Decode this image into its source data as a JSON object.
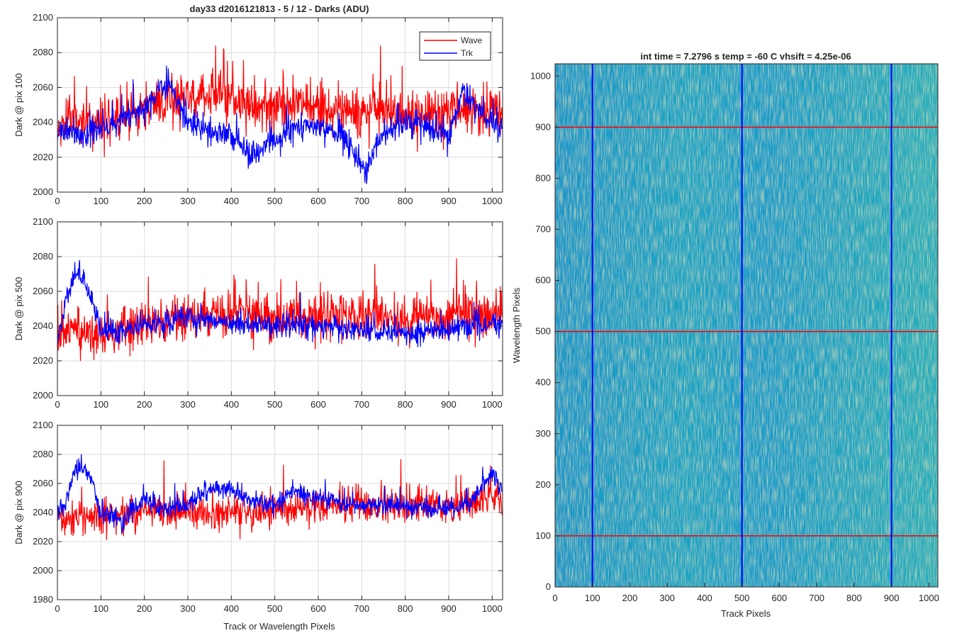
{
  "figure": {
    "left_title": "day33 d2016121813 - 5 / 12 - Darks (ADU)",
    "left_xlabel": "Track or Wavelength Pixels",
    "right_title": "int time = 7.2796 s    temp = -60 C    vhsift = 4.25e-06"
  },
  "chart_data": [
    {
      "type": "line",
      "panel": "top-left",
      "ylabel": "Dark @ pix 100",
      "xlim": [
        0,
        1024
      ],
      "ylim": [
        2000,
        2100
      ],
      "xticks": [
        0,
        100,
        200,
        300,
        400,
        500,
        600,
        700,
        800,
        900,
        1000
      ],
      "yticks": [
        2000,
        2020,
        2040,
        2060,
        2080,
        2100
      ],
      "grid": true,
      "legend": {
        "placement": "top-right",
        "entries": [
          "Wave",
          "Trk"
        ]
      },
      "series": [
        {
          "name": "Wave",
          "color": "#ff0000",
          "x": [
            0,
            50,
            100,
            150,
            200,
            250,
            300,
            350,
            400,
            450,
            500,
            550,
            600,
            650,
            700,
            750,
            800,
            850,
            900,
            950,
            1000,
            1023
          ],
          "values": [
            2038,
            2042,
            2040,
            2045,
            2048,
            2052,
            2055,
            2056,
            2054,
            2048,
            2050,
            2052,
            2050,
            2047,
            2045,
            2045,
            2043,
            2046,
            2046,
            2048,
            2045,
            2046
          ],
          "noise": 13,
          "range": [
            2020,
            2093
          ]
        },
        {
          "name": "Trk",
          "color": "#0000ff",
          "x": [
            0,
            50,
            100,
            150,
            200,
            230,
            260,
            300,
            350,
            400,
            430,
            460,
            500,
            550,
            600,
            650,
            690,
            710,
            750,
            800,
            850,
            900,
            930,
            960,
            1000,
            1023
          ],
          "values": [
            2034,
            2033,
            2035,
            2042,
            2048,
            2057,
            2060,
            2040,
            2035,
            2032,
            2025,
            2022,
            2030,
            2037,
            2038,
            2033,
            2020,
            2012,
            2035,
            2040,
            2038,
            2032,
            2058,
            2048,
            2038,
            2035
          ],
          "noise": 7,
          "range": [
            2002,
            2073
          ]
        }
      ]
    },
    {
      "type": "line",
      "panel": "middle-left",
      "ylabel": "Dark @ pix 500",
      "xlim": [
        0,
        1024
      ],
      "ylim": [
        2000,
        2100
      ],
      "xticks": [
        0,
        100,
        200,
        300,
        400,
        500,
        600,
        700,
        800,
        900,
        1000
      ],
      "yticks": [
        2000,
        2020,
        2040,
        2060,
        2080,
        2100
      ],
      "grid": true,
      "series": [
        {
          "name": "Wave",
          "color": "#ff0000",
          "x": [
            0,
            100,
            200,
            300,
            400,
            500,
            600,
            700,
            800,
            900,
            1000,
            1023
          ],
          "values": [
            2036,
            2035,
            2040,
            2045,
            2047,
            2044,
            2046,
            2047,
            2044,
            2046,
            2048,
            2047
          ],
          "noise": 12,
          "range": [
            2011,
            2089
          ]
        },
        {
          "name": "Trk",
          "color": "#0000ff",
          "x": [
            0,
            20,
            40,
            60,
            80,
            100,
            120,
            200,
            300,
            400,
            500,
            600,
            700,
            800,
            900,
            1000,
            1023
          ],
          "values": [
            2030,
            2055,
            2070,
            2070,
            2055,
            2038,
            2036,
            2040,
            2045,
            2042,
            2040,
            2040,
            2038,
            2036,
            2038,
            2042,
            2040
          ],
          "noise": 6,
          "range": [
            2013,
            2081
          ]
        }
      ]
    },
    {
      "type": "line",
      "panel": "bottom-left",
      "ylabel": "Dark @ pix 900",
      "xlabel": "Track or Wavelength Pixels",
      "xlim": [
        0,
        1024
      ],
      "ylim": [
        1980,
        2100
      ],
      "xticks": [
        0,
        100,
        200,
        300,
        400,
        500,
        600,
        700,
        800,
        900,
        1000
      ],
      "yticks": [
        1980,
        2000,
        2020,
        2040,
        2060,
        2080,
        2100
      ],
      "grid": true,
      "series": [
        {
          "name": "Wave",
          "color": "#ff0000",
          "x": [
            0,
            100,
            200,
            300,
            400,
            500,
            600,
            700,
            800,
            900,
            1000,
            1023
          ],
          "values": [
            2036,
            2038,
            2040,
            2040,
            2040,
            2042,
            2044,
            2045,
            2045,
            2045,
            2050,
            2048
          ],
          "noise": 11,
          "range": [
            1998,
            2088
          ]
        },
        {
          "name": "Trk",
          "color": "#0000ff",
          "x": [
            0,
            20,
            40,
            60,
            80,
            100,
            150,
            200,
            250,
            300,
            350,
            400,
            450,
            500,
            550,
            600,
            650,
            700,
            750,
            800,
            850,
            900,
            950,
            1000,
            1023
          ],
          "values": [
            2038,
            2045,
            2068,
            2070,
            2062,
            2040,
            2035,
            2048,
            2042,
            2045,
            2055,
            2055,
            2048,
            2045,
            2055,
            2050,
            2046,
            2045,
            2045,
            2044,
            2043,
            2042,
            2046,
            2068,
            2055
          ],
          "noise": 6,
          "range": [
            2020,
            2082
          ]
        }
      ]
    },
    {
      "type": "heatmap",
      "panel": "right",
      "title": "int time = 7.2796 s    temp = -60 C    vhsift = 4.25e-06",
      "xlabel": "Track Pixels",
      "ylabel": "Wavelength Pixels",
      "xlim": [
        0,
        1024
      ],
      "ylim": [
        0,
        1024
      ],
      "xticks": [
        0,
        100,
        200,
        300,
        400,
        500,
        600,
        700,
        800,
        900,
        1000
      ],
      "yticks": [
        0,
        100,
        200,
        300,
        400,
        500,
        600,
        700,
        800,
        900,
        1000
      ],
      "colormap": "parula",
      "base_color": "#1fa2c6",
      "vertical_lines": {
        "color": "#0000ff",
        "x": [
          100,
          500,
          900
        ]
      },
      "horizontal_lines": {
        "color": "#ff0000",
        "y": [
          100,
          500,
          900
        ]
      }
    }
  ]
}
